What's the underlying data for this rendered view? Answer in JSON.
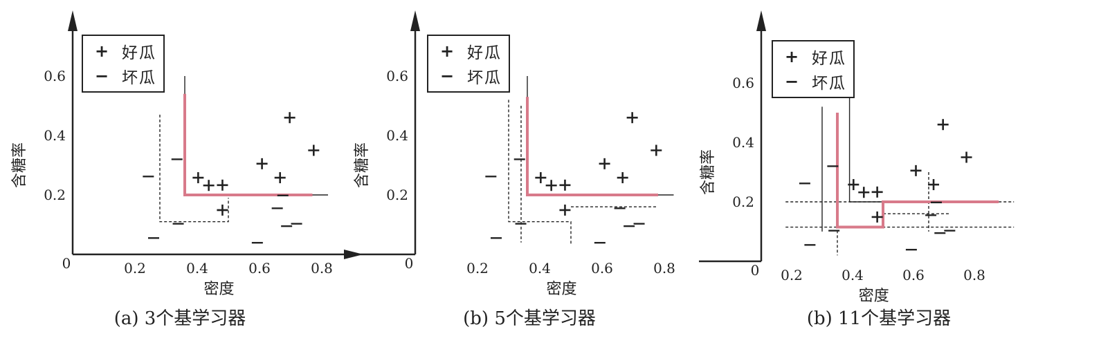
{
  "figure": {
    "panels": [
      {
        "caption": "(a) 3个基学习器",
        "legend": [
          {
            "symbol": "+",
            "label": "好瓜"
          },
          {
            "symbol": "−",
            "label": "坏瓜"
          }
        ]
      },
      {
        "caption": "(b) 5个基学习器",
        "legend": [
          {
            "symbol": "+",
            "label": "好瓜"
          },
          {
            "symbol": "−",
            "label": "坏瓜"
          }
        ]
      },
      {
        "caption": "(b) 11个基学习器",
        "legend": [
          {
            "symbol": "+",
            "label": "好瓜"
          },
          {
            "symbol": "−",
            "label": "坏瓜"
          }
        ]
      }
    ]
  },
  "chart_data": [
    {
      "type": "scatter",
      "title": "",
      "xlabel": "密度",
      "ylabel": "含糖率",
      "origin_label": "0",
      "xticks": [
        "0.2",
        "0.4",
        "0.6",
        "0.8"
      ],
      "yticks": [
        "0.2",
        "0.4",
        "0.6"
      ],
      "xlim": [
        0,
        0.95
      ],
      "ylim": [
        0,
        0.75
      ],
      "colors": {
        "ensemble_boundary": "#d87a8a",
        "points": "#222222"
      },
      "series": [
        {
          "name": "好瓜",
          "marker": "+",
          "points": [
            [
              0.403,
              0.258
            ],
            [
              0.437,
              0.232
            ],
            [
              0.481,
              0.233
            ],
            [
              0.608,
              0.305
            ],
            [
              0.666,
              0.258
            ],
            [
              0.697,
              0.46
            ],
            [
              0.774,
              0.35
            ]
          ]
        },
        {
          "name": "坏瓜",
          "marker": "−",
          "points": [
            [
              0.243,
              0.262
            ],
            [
              0.26,
              0.055
            ],
            [
              0.335,
              0.32
            ],
            [
              0.339,
              0.103
            ],
            [
              0.481,
              0.149
            ],
            [
              0.593,
              0.039
            ],
            [
              0.657,
              0.155
            ],
            [
              0.675,
              0.198
            ],
            [
              0.687,
              0.095
            ],
            [
              0.719,
              0.103
            ]
          ]
        }
      ],
      "extra_good_points": [
        [
          0.481,
          0.149
        ]
      ],
      "base_learner_boundaries": [
        {
          "style": "dashed",
          "path": [
            [
              0.28,
              0.47
            ],
            [
              0.28,
              0.11
            ],
            [
              0.5,
              0.11
            ],
            [
              0.5,
              0.19
            ]
          ]
        },
        {
          "style": "solid",
          "path": [
            [
              0.36,
              0.2
            ],
            [
              0.82,
              0.2
            ]
          ]
        },
        {
          "style": "solid",
          "path": [
            [
              0.36,
              0.2
            ],
            [
              0.36,
              0.6
            ]
          ]
        }
      ],
      "ensemble_boundary": [
        [
          0.36,
          0.54
        ],
        [
          0.36,
          0.2
        ],
        [
          0.77,
          0.2
        ]
      ]
    },
    {
      "type": "scatter",
      "title": "",
      "xlabel": "密度",
      "ylabel": "含糖率",
      "origin_label": "0",
      "xticks": [
        "0.2",
        "0.4",
        "0.6",
        "0.8"
      ],
      "yticks": [
        "0.2",
        "0.4",
        "0.6"
      ],
      "xlim": [
        0,
        0.95
      ],
      "ylim": [
        0,
        0.75
      ],
      "colors": {
        "ensemble_boundary": "#d87a8a",
        "points": "#222222"
      },
      "series": [
        {
          "name": "好瓜",
          "marker": "+",
          "points": [
            [
              0.403,
              0.258
            ],
            [
              0.437,
              0.232
            ],
            [
              0.481,
              0.233
            ],
            [
              0.608,
              0.305
            ],
            [
              0.666,
              0.258
            ],
            [
              0.697,
              0.46
            ],
            [
              0.774,
              0.35
            ],
            [
              0.481,
              0.149
            ]
          ]
        },
        {
          "name": "坏瓜",
          "marker": "−",
          "points": [
            [
              0.243,
              0.262
            ],
            [
              0.26,
              0.055
            ],
            [
              0.335,
              0.32
            ],
            [
              0.339,
              0.103
            ],
            [
              0.593,
              0.039
            ],
            [
              0.657,
              0.155
            ],
            [
              0.687,
              0.095
            ],
            [
              0.719,
              0.103
            ]
          ]
        }
      ],
      "base_learner_boundaries": [
        {
          "style": "dashed",
          "path": [
            [
              0.3,
              0.52
            ],
            [
              0.3,
              0.11
            ],
            [
              0.5,
              0.11
            ],
            [
              0.5,
              0.03
            ]
          ]
        },
        {
          "style": "dashed",
          "path": [
            [
              0.34,
              0.5
            ],
            [
              0.34,
              0.04
            ]
          ]
        },
        {
          "style": "dashed",
          "path": [
            [
              0.5,
              0.16
            ],
            [
              0.78,
              0.16
            ]
          ]
        },
        {
          "style": "solid",
          "path": [
            [
              0.36,
              0.2
            ],
            [
              0.83,
              0.2
            ]
          ]
        },
        {
          "style": "solid",
          "path": [
            [
              0.36,
              0.2
            ],
            [
              0.36,
              0.6
            ]
          ]
        }
      ],
      "ensemble_boundary": [
        [
          0.36,
          0.53
        ],
        [
          0.36,
          0.2
        ],
        [
          0.78,
          0.2
        ]
      ]
    },
    {
      "type": "scatter",
      "title": "",
      "xlabel": "密度",
      "ylabel": "含糖率",
      "origin_label": "0",
      "xticks": [
        "0.2",
        "0.4",
        "0.6",
        "0.8"
      ],
      "yticks": [
        "0.2",
        "0.4",
        "0.6"
      ],
      "xlim": [
        0.1,
        0.95
      ],
      "ylim": [
        0,
        0.75
      ],
      "colors": {
        "ensemble_boundary": "#d87a8a",
        "points": "#222222"
      },
      "series": [
        {
          "name": "好瓜",
          "marker": "+",
          "points": [
            [
              0.403,
              0.258
            ],
            [
              0.437,
              0.232
            ],
            [
              0.481,
              0.233
            ],
            [
              0.608,
              0.305
            ],
            [
              0.666,
              0.258
            ],
            [
              0.697,
              0.46
            ],
            [
              0.774,
              0.35
            ],
            [
              0.481,
              0.149
            ]
          ]
        },
        {
          "name": "坏瓜",
          "marker": "−",
          "points": [
            [
              0.243,
              0.262
            ],
            [
              0.26,
              0.055
            ],
            [
              0.335,
              0.32
            ],
            [
              0.339,
              0.103
            ],
            [
              0.593,
              0.039
            ],
            [
              0.657,
              0.155
            ],
            [
              0.675,
              0.198
            ],
            [
              0.687,
              0.095
            ],
            [
              0.719,
              0.103
            ]
          ]
        }
      ],
      "base_learner_boundaries": [
        {
          "style": "dashed",
          "path": [
            [
              0.18,
              0.2
            ],
            [
              0.93,
              0.2
            ]
          ]
        },
        {
          "style": "dashed",
          "path": [
            [
              0.18,
              0.115
            ],
            [
              0.93,
              0.115
            ]
          ]
        },
        {
          "style": "dashed",
          "path": [
            [
              0.5,
              0.16
            ],
            [
              0.72,
              0.16
            ]
          ]
        },
        {
          "style": "dashed",
          "path": [
            [
              0.65,
              0.3
            ],
            [
              0.65,
              0.1
            ]
          ]
        },
        {
          "style": "dashed",
          "path": [
            [
              0.35,
              0.12
            ],
            [
              0.35,
              0.02
            ]
          ]
        },
        {
          "style": "solid",
          "path": [
            [
              0.3,
              0.52
            ],
            [
              0.3,
              0.1
            ]
          ]
        },
        {
          "style": "solid",
          "path": [
            [
              0.39,
              0.58
            ],
            [
              0.39,
              0.2
            ]
          ]
        },
        {
          "style": "solid",
          "path": [
            [
              0.39,
              0.2
            ],
            [
              0.5,
              0.2
            ]
          ]
        }
      ],
      "ensemble_boundary": [
        [
          0.35,
          0.5
        ],
        [
          0.35,
          0.115
        ],
        [
          0.5,
          0.115
        ],
        [
          0.5,
          0.2
        ],
        [
          0.88,
          0.2
        ]
      ]
    }
  ]
}
